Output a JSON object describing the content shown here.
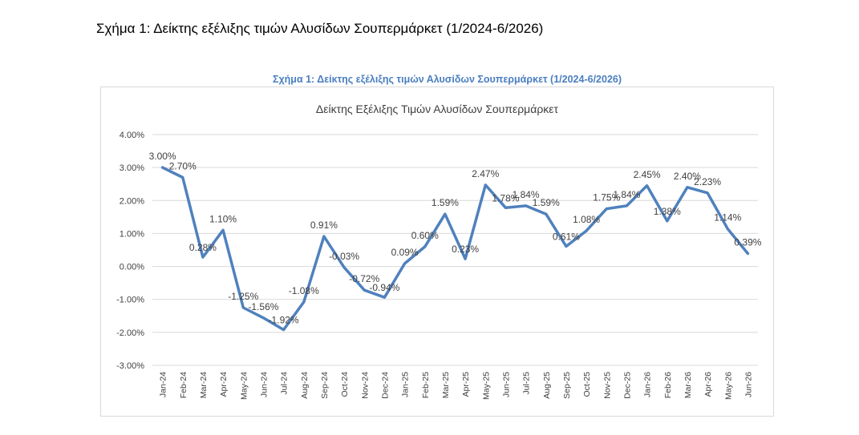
{
  "document": {
    "caption": "Σχήμα 1: Δείκτης εξέλιξης τιμών Αλυσίδων Σουπερμάρκετ (1/2024-6/2026)"
  },
  "figure": {
    "caption": "Σχήμα 1: Δείκτης εξέλιξης τιμών Αλυσίδων Σουπερμάρκετ (1/2024-6/2026)"
  },
  "chart_data": {
    "type": "line",
    "title": "Δείκτης Εξέλιξης Τιμών Αλυσίδων Σουπερμάρκετ",
    "xlabel": "",
    "ylabel": "",
    "ylim": [
      -3,
      4
    ],
    "yticks": [
      "4.00%",
      "3.00%",
      "2.00%",
      "1.00%",
      "0.00%",
      "-1.00%",
      "-2.00%",
      "-3.00%"
    ],
    "ytick_values": [
      4,
      3,
      2,
      1,
      0,
      -1,
      -2,
      -3
    ],
    "grid": "horizontal",
    "legend": "none",
    "line_color": "#4f81bd",
    "categories": [
      "Jan-24",
      "Feb-24",
      "Mar-24",
      "Apr-24",
      "May-24",
      "Jun-24",
      "Jul-24",
      "Aug-24",
      "Sep-24",
      "Oct-24",
      "Nov-24",
      "Dec-24",
      "Jan-25",
      "Feb-25",
      "Mar-25",
      "Apr-25",
      "May-25",
      "Jun-25",
      "Jul-25",
      "Aug-25",
      "Sep-25",
      "Oct-25",
      "Nov-25",
      "Dec-25",
      "Jan-26",
      "Feb-26",
      "Mar-26",
      "Apr-26",
      "May-26",
      "Jun-26"
    ],
    "values": [
      3.0,
      2.7,
      0.28,
      1.1,
      -1.25,
      -1.56,
      -1.92,
      -1.08,
      0.91,
      -0.03,
      -0.72,
      -0.94,
      0.09,
      0.6,
      1.59,
      0.23,
      2.47,
      1.78,
      1.84,
      1.59,
      0.61,
      1.08,
      1.75,
      1.84,
      2.45,
      1.38,
      2.4,
      2.23,
      1.14,
      0.39
    ],
    "data_labels": [
      "3.00%",
      "2.70%",
      "0.28%",
      "1.10%",
      "-1.25%",
      "-1.56%",
      "-1.92%",
      "-1.08%",
      "0.91%",
      "-0.03%",
      "-0.72%",
      "-0.94%",
      "0.09%",
      "0.60%",
      "1.59%",
      "0.23%",
      "2.47%",
      "1.78%",
      "1.84%",
      "1.59%",
      "0.61%",
      "1.08%",
      "1.75%",
      "1.84%",
      "2.45%",
      "1.38%",
      "2.40%",
      "2.23%",
      "1.14%",
      "0.39%"
    ]
  }
}
